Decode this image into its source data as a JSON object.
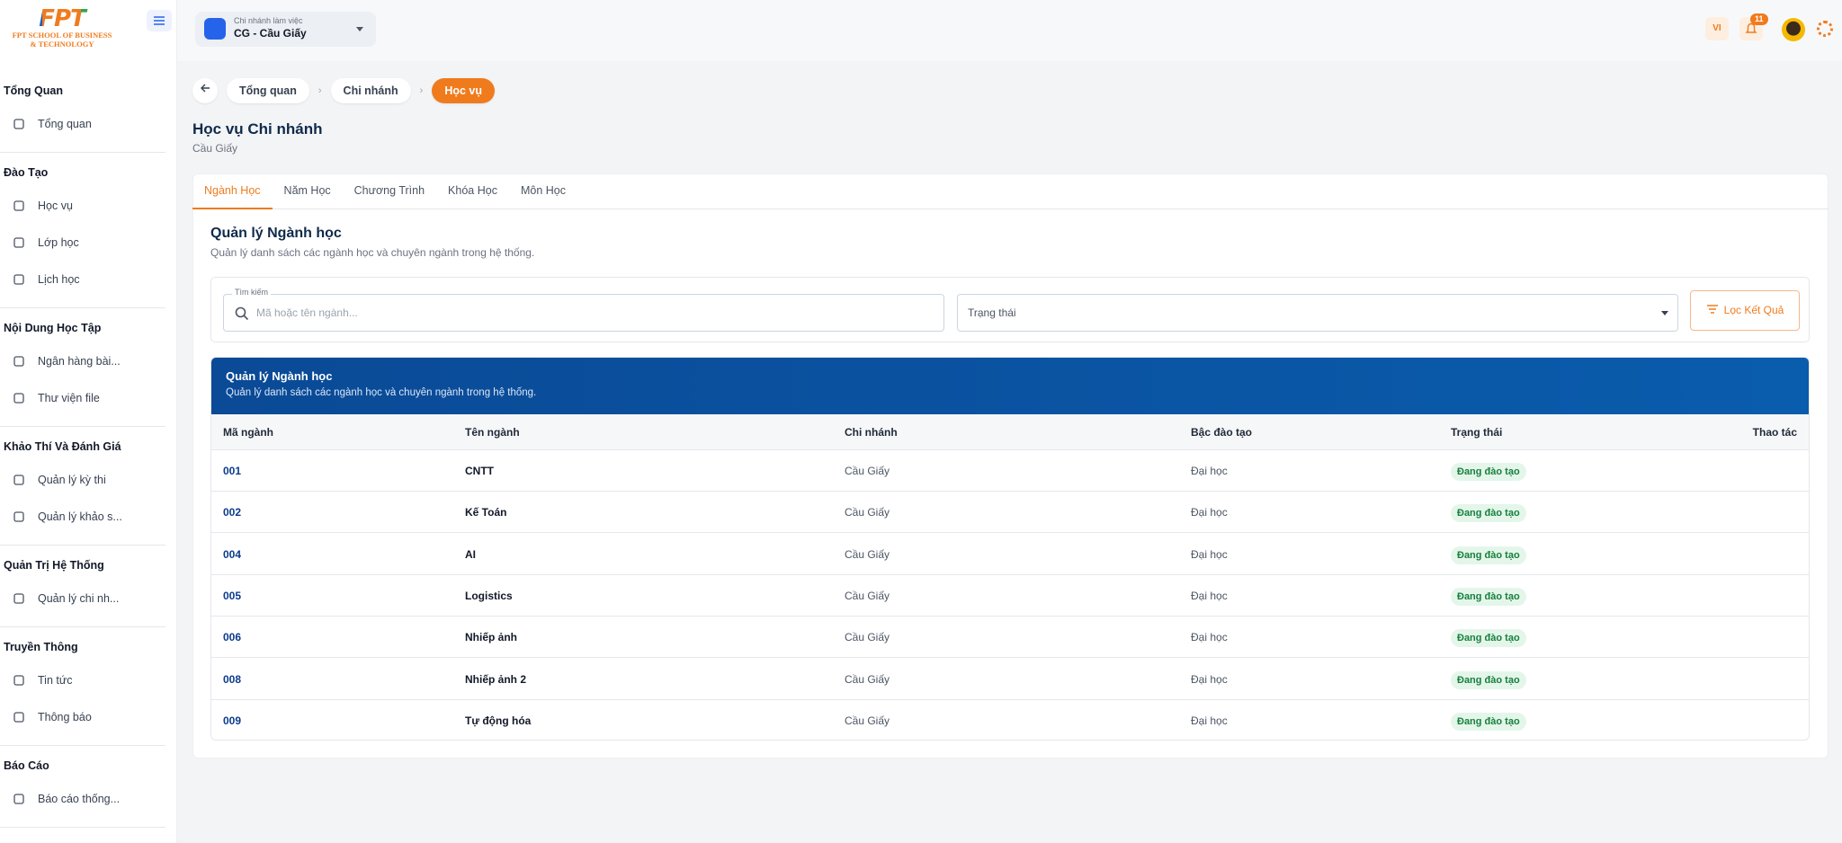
{
  "logo": {
    "brand": "FPT",
    "line1": "FPT SCHOOL OF BUSINESS",
    "line2": "& TECHNOLOGY"
  },
  "sidebar": {
    "sections": [
      {
        "title": "Tổng Quan",
        "items": [
          "Tổng quan"
        ]
      },
      {
        "title": "Đào Tạo",
        "items": [
          "Học vụ",
          "Lớp học",
          "Lịch học"
        ]
      },
      {
        "title": "Nội Dung Học Tập",
        "items": [
          "Ngân hàng bài...",
          "Thư viện file"
        ]
      },
      {
        "title": "Khảo Thí Và Đánh Giá",
        "items": [
          "Quản lý kỳ thi",
          "Quản lý khảo s..."
        ]
      },
      {
        "title": "Quản Trị Hệ Thống",
        "items": [
          "Quản lý chi nh..."
        ]
      },
      {
        "title": "Truyền Thông",
        "items": [
          "Tin tức",
          "Thông báo"
        ]
      },
      {
        "title": "Báo Cáo",
        "items": [
          "Báo cáo thống..."
        ]
      }
    ]
  },
  "topbar": {
    "branch_label": "Chi nhánh làm việc",
    "branch": "CG - Cầu Giấy",
    "language": "VI",
    "notifications": 11
  },
  "breadcrumb": [
    "Tổng quan",
    "Chi nhánh",
    "Học vụ"
  ],
  "page": {
    "title": "Học vụ Chi nhánh",
    "subtitle": "Cầu Giấy"
  },
  "tabs": {
    "items": [
      "Ngành Học",
      "Năm Học",
      "Chương Trình",
      "Khóa Học",
      "Môn Học"
    ],
    "active": 0
  },
  "section": {
    "title": "Quản lý Ngành học",
    "description": "Quản lý danh sách các ngành học và chuyên ngành trong hệ thống."
  },
  "filters": {
    "search_label": "Tìm kiếm",
    "search_placeholder": "Mã hoặc tên ngành...",
    "status_placeholder": "Trạng thái",
    "button": "Lọc Kết Quả"
  },
  "table": {
    "banner_title": "Quản lý Ngành học",
    "banner_description": "Quản lý danh sách các ngành học và chuyên ngành trong hệ thống.",
    "columns": [
      "Mã ngành",
      "Tên ngành",
      "Chi nhánh",
      "Bậc đào tạo",
      "Trạng thái",
      "Thao tác"
    ],
    "rows": [
      [
        "001",
        "CNTT",
        "Cầu Giấy",
        "Đại học",
        "Đang đào tạo"
      ],
      [
        "002",
        "Kế Toán",
        "Cầu Giấy",
        "Đại học",
        "Đang đào tạo"
      ],
      [
        "004",
        "AI",
        "Cầu Giấy",
        "Đại học",
        "Đang đào tạo"
      ],
      [
        "005",
        "Logistics",
        "Cầu Giấy",
        "Đại học",
        "Đang đào tạo"
      ],
      [
        "006",
        "Nhiếp ảnh",
        "Cầu Giấy",
        "Đại học",
        "Đang đào tạo"
      ],
      [
        "008",
        "Nhiếp ảnh 2",
        "Cầu Giấy",
        "Đại học",
        "Đang đào tạo"
      ],
      [
        "009",
        "Tự động hóa",
        "Cầu Giấy",
        "Đại học",
        "Đang đào tạo"
      ]
    ]
  }
}
